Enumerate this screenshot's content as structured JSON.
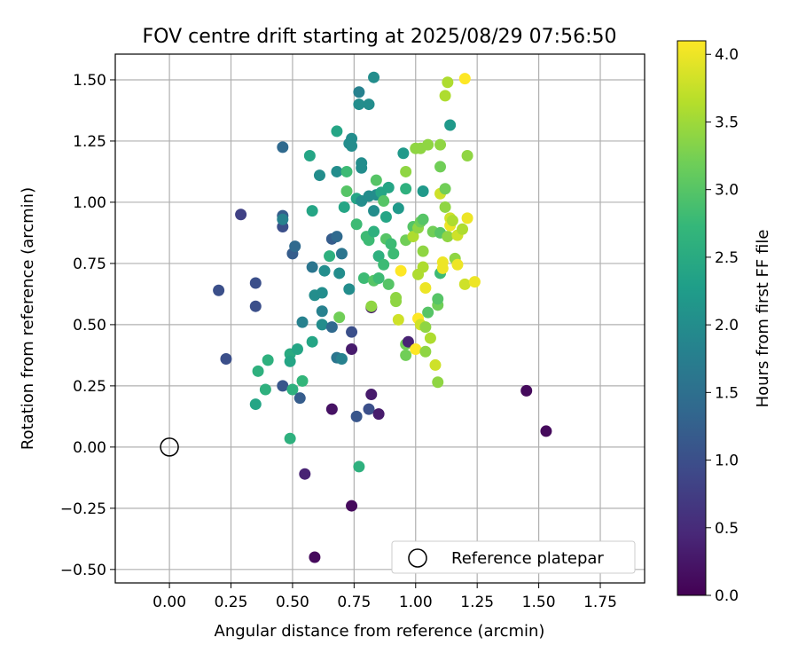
{
  "chart_data": {
    "type": "scatter",
    "title": "FOV centre drift starting at 2025/08/29 07:56:50",
    "xlabel": "Angular distance from reference (arcmin)",
    "ylabel": "Rotation from reference (arcmin)",
    "xlim": [
      -0.22,
      1.93
    ],
    "ylim": [
      -0.555,
      1.605
    ],
    "xticks": [
      0.0,
      0.25,
      0.5,
      0.75,
      1.0,
      1.25,
      1.5,
      1.75
    ],
    "yticks": [
      -0.5,
      -0.25,
      0.0,
      0.25,
      0.5,
      0.75,
      1.0,
      1.25,
      1.5
    ],
    "xtick_labels": [
      "0.00",
      "0.25",
      "0.50",
      "0.75",
      "1.00",
      "1.25",
      "1.50",
      "1.75"
    ],
    "ytick_labels": [
      "−0.50",
      "−0.25",
      "0.00",
      "0.25",
      "0.50",
      "0.75",
      "1.00",
      "1.25",
      "1.50"
    ],
    "grid": true,
    "colorbar": {
      "label": "Hours from first FF file",
      "min": 0.0,
      "max": 4.1,
      "ticks": [
        0.0,
        0.5,
        1.0,
        1.5,
        2.0,
        2.5,
        3.0,
        3.5,
        4.0
      ],
      "tick_labels": [
        "0.0",
        "0.5",
        "1.0",
        "1.5",
        "2.0",
        "2.5",
        "3.0",
        "3.5",
        "4.0"
      ],
      "colormap": "viridis",
      "stops": [
        "#440154",
        "#482878",
        "#3e4989",
        "#31688e",
        "#26828e",
        "#1f9e89",
        "#35b779",
        "#6ece58",
        "#b5de2b",
        "#fde725"
      ]
    },
    "reference": {
      "label": "Reference platepar",
      "x": 0.0,
      "y": 0.0
    },
    "legend_position": "lower-right",
    "points": [
      [
        0.59,
        -0.45,
        0.1
      ],
      [
        0.74,
        -0.24,
        0.1
      ],
      [
        0.55,
        -0.11,
        0.4
      ],
      [
        0.77,
        -0.08,
        2.6
      ],
      [
        0.49,
        0.035,
        2.6
      ],
      [
        1.53,
        0.065,
        0.1
      ],
      [
        1.45,
        0.23,
        0.1
      ],
      [
        0.35,
        0.175,
        2.4
      ],
      [
        0.39,
        0.235,
        2.6
      ],
      [
        0.46,
        0.25,
        1.1
      ],
      [
        0.5,
        0.235,
        2.6
      ],
      [
        0.53,
        0.2,
        1.2
      ],
      [
        0.54,
        0.27,
        2.7
      ],
      [
        0.66,
        0.155,
        0.2
      ],
      [
        0.76,
        0.125,
        1.1
      ],
      [
        0.81,
        0.155,
        1.0
      ],
      [
        0.85,
        0.135,
        0.3
      ],
      [
        0.82,
        0.215,
        0.3
      ],
      [
        0.36,
        0.31,
        2.6
      ],
      [
        0.4,
        0.355,
        2.6
      ],
      [
        0.49,
        0.38,
        2.5
      ],
      [
        0.49,
        0.35,
        2.4
      ],
      [
        0.52,
        0.4,
        2.4
      ],
      [
        0.68,
        0.365,
        1.6
      ],
      [
        0.7,
        0.36,
        1.8
      ],
      [
        0.74,
        0.4,
        0.3
      ],
      [
        0.74,
        0.47,
        1.0
      ],
      [
        0.23,
        0.36,
        1.0
      ],
      [
        0.2,
        0.64,
        1.0
      ],
      [
        0.35,
        0.67,
        1.0
      ],
      [
        0.35,
        0.575,
        1.0
      ],
      [
        0.29,
        0.95,
        0.8
      ],
      [
        0.46,
        0.9,
        1.0
      ],
      [
        0.46,
        0.945,
        1.2
      ],
      [
        0.46,
        0.93,
        1.8
      ],
      [
        0.46,
        1.225,
        1.4
      ],
      [
        0.5,
        0.79,
        1.2
      ],
      [
        0.51,
        0.82,
        1.4
      ],
      [
        0.54,
        0.51,
        1.8
      ],
      [
        0.58,
        0.43,
        2.4
      ],
      [
        0.58,
        0.735,
        1.6
      ],
      [
        0.59,
        0.62,
        2.0
      ],
      [
        0.57,
        1.19,
        2.4
      ],
      [
        0.58,
        0.965,
        2.4
      ],
      [
        0.61,
        1.11,
        2.0
      ],
      [
        0.62,
        0.5,
        2.0
      ],
      [
        0.62,
        0.555,
        1.8
      ],
      [
        0.62,
        0.63,
        2.0
      ],
      [
        0.63,
        0.72,
        2.0
      ],
      [
        0.65,
        0.78,
        2.6
      ],
      [
        0.66,
        0.49,
        1.4
      ],
      [
        0.66,
        0.85,
        1.2
      ],
      [
        0.68,
        0.86,
        1.4
      ],
      [
        0.68,
        1.125,
        2.0
      ],
      [
        0.68,
        1.29,
        2.4
      ],
      [
        0.69,
        0.53,
        3.2
      ],
      [
        0.69,
        0.71,
        2.0
      ],
      [
        0.7,
        0.79,
        1.6
      ],
      [
        0.71,
        0.98,
        2.4
      ],
      [
        0.72,
        1.045,
        3.0
      ],
      [
        0.72,
        1.125,
        2.8
      ],
      [
        0.73,
        0.645,
        2.0
      ],
      [
        0.73,
        1.24,
        2.0
      ],
      [
        0.74,
        1.26,
        2.0
      ],
      [
        0.74,
        1.23,
        2.0
      ],
      [
        0.76,
        0.91,
        2.8
      ],
      [
        0.76,
        1.015,
        2.4
      ],
      [
        0.77,
        1.4,
        2.0
      ],
      [
        0.77,
        1.45,
        1.8
      ],
      [
        0.78,
        1.14,
        2.0
      ],
      [
        0.78,
        1.16,
        2.0
      ],
      [
        0.78,
        1.005,
        2.0
      ],
      [
        0.79,
        0.69,
        2.8
      ],
      [
        0.8,
        0.86,
        2.8
      ],
      [
        0.81,
        1.4,
        2.0
      ],
      [
        0.81,
        1.025,
        2.0
      ],
      [
        0.82,
        0.57,
        0.3
      ],
      [
        0.82,
        0.575,
        3.4
      ],
      [
        0.81,
        0.845,
        2.8
      ],
      [
        0.83,
        1.51,
        2.0
      ],
      [
        0.83,
        0.88,
        2.6
      ],
      [
        0.83,
        0.965,
        2.0
      ],
      [
        0.83,
        0.68,
        3.0
      ],
      [
        0.84,
        1.09,
        3.0
      ],
      [
        0.84,
        1.03,
        2.0
      ],
      [
        0.85,
        0.78,
        2.6
      ],
      [
        0.85,
        0.69,
        2.8
      ],
      [
        0.86,
        1.04,
        2.4
      ],
      [
        0.87,
        0.745,
        2.8
      ],
      [
        0.87,
        1.005,
        3.0
      ],
      [
        0.88,
        0.94,
        2.4
      ],
      [
        0.88,
        0.85,
        3.0
      ],
      [
        0.89,
        0.665,
        3.0
      ],
      [
        0.89,
        1.06,
        2.4
      ],
      [
        0.9,
        0.83,
        2.8
      ],
      [
        0.91,
        0.79,
        2.8
      ],
      [
        0.92,
        0.595,
        3.4
      ],
      [
        0.92,
        0.61,
        3.4
      ],
      [
        0.93,
        0.52,
        3.8
      ],
      [
        0.93,
        0.975,
        2.2
      ],
      [
        0.94,
        0.72,
        4.1
      ],
      [
        0.95,
        1.2,
        2.2
      ],
      [
        0.96,
        1.125,
        3.4
      ],
      [
        0.96,
        1.055,
        2.6
      ],
      [
        0.96,
        0.845,
        3.2
      ],
      [
        0.96,
        0.42,
        3.2
      ],
      [
        0.96,
        0.375,
        3.2
      ],
      [
        0.97,
        0.43,
        0.4
      ],
      [
        0.99,
        0.9,
        3.0
      ],
      [
        0.99,
        0.86,
        3.6
      ],
      [
        1.0,
        1.22,
        3.4
      ],
      [
        1.0,
        0.4,
        4.1
      ],
      [
        1.01,
        0.895,
        3.4
      ],
      [
        1.01,
        0.525,
        4.1
      ],
      [
        1.01,
        0.705,
        3.6
      ],
      [
        1.02,
        0.5,
        3.8
      ],
      [
        1.02,
        1.22,
        3.4
      ],
      [
        1.02,
        0.92,
        3.2
      ],
      [
        1.03,
        0.93,
        3.0
      ],
      [
        1.03,
        0.8,
        3.4
      ],
      [
        1.03,
        0.735,
        3.6
      ],
      [
        1.03,
        1.045,
        2.2
      ],
      [
        1.04,
        0.49,
        3.4
      ],
      [
        1.04,
        0.65,
        4.0
      ],
      [
        1.04,
        0.39,
        3.4
      ],
      [
        1.05,
        0.55,
        3.0
      ],
      [
        1.05,
        1.235,
        3.4
      ],
      [
        1.06,
        0.445,
        3.6
      ],
      [
        1.07,
        0.88,
        3.2
      ],
      [
        1.08,
        0.335,
        3.8
      ],
      [
        1.09,
        0.265,
        3.4
      ],
      [
        1.09,
        0.58,
        3.2
      ],
      [
        1.09,
        0.605,
        3.0
      ],
      [
        1.1,
        0.875,
        3.0
      ],
      [
        1.1,
        0.71,
        2.8
      ],
      [
        1.1,
        1.145,
        3.2
      ],
      [
        1.1,
        1.235,
        3.4
      ],
      [
        1.1,
        1.035,
        3.8
      ],
      [
        1.11,
        0.73,
        4.0
      ],
      [
        1.11,
        0.755,
        4.0
      ],
      [
        1.12,
        1.435,
        3.6
      ],
      [
        1.12,
        1.055,
        3.2
      ],
      [
        1.12,
        0.98,
        3.4
      ],
      [
        1.13,
        1.49,
        3.6
      ],
      [
        1.13,
        0.86,
        3.4
      ],
      [
        1.14,
        1.315,
        2.2
      ],
      [
        1.14,
        0.935,
        3.8
      ],
      [
        1.14,
        0.905,
        4.0
      ],
      [
        1.15,
        0.925,
        3.6
      ],
      [
        1.16,
        0.77,
        3.4
      ],
      [
        1.17,
        0.865,
        3.8
      ],
      [
        1.17,
        0.745,
        4.0
      ],
      [
        1.2,
        1.505,
        4.1
      ],
      [
        1.2,
        0.665,
        3.8
      ],
      [
        1.21,
        0.935,
        4.0
      ],
      [
        1.21,
        1.19,
        3.4
      ],
      [
        1.24,
        0.675,
        4.0
      ],
      [
        1.19,
        0.89,
        3.6
      ]
    ]
  }
}
